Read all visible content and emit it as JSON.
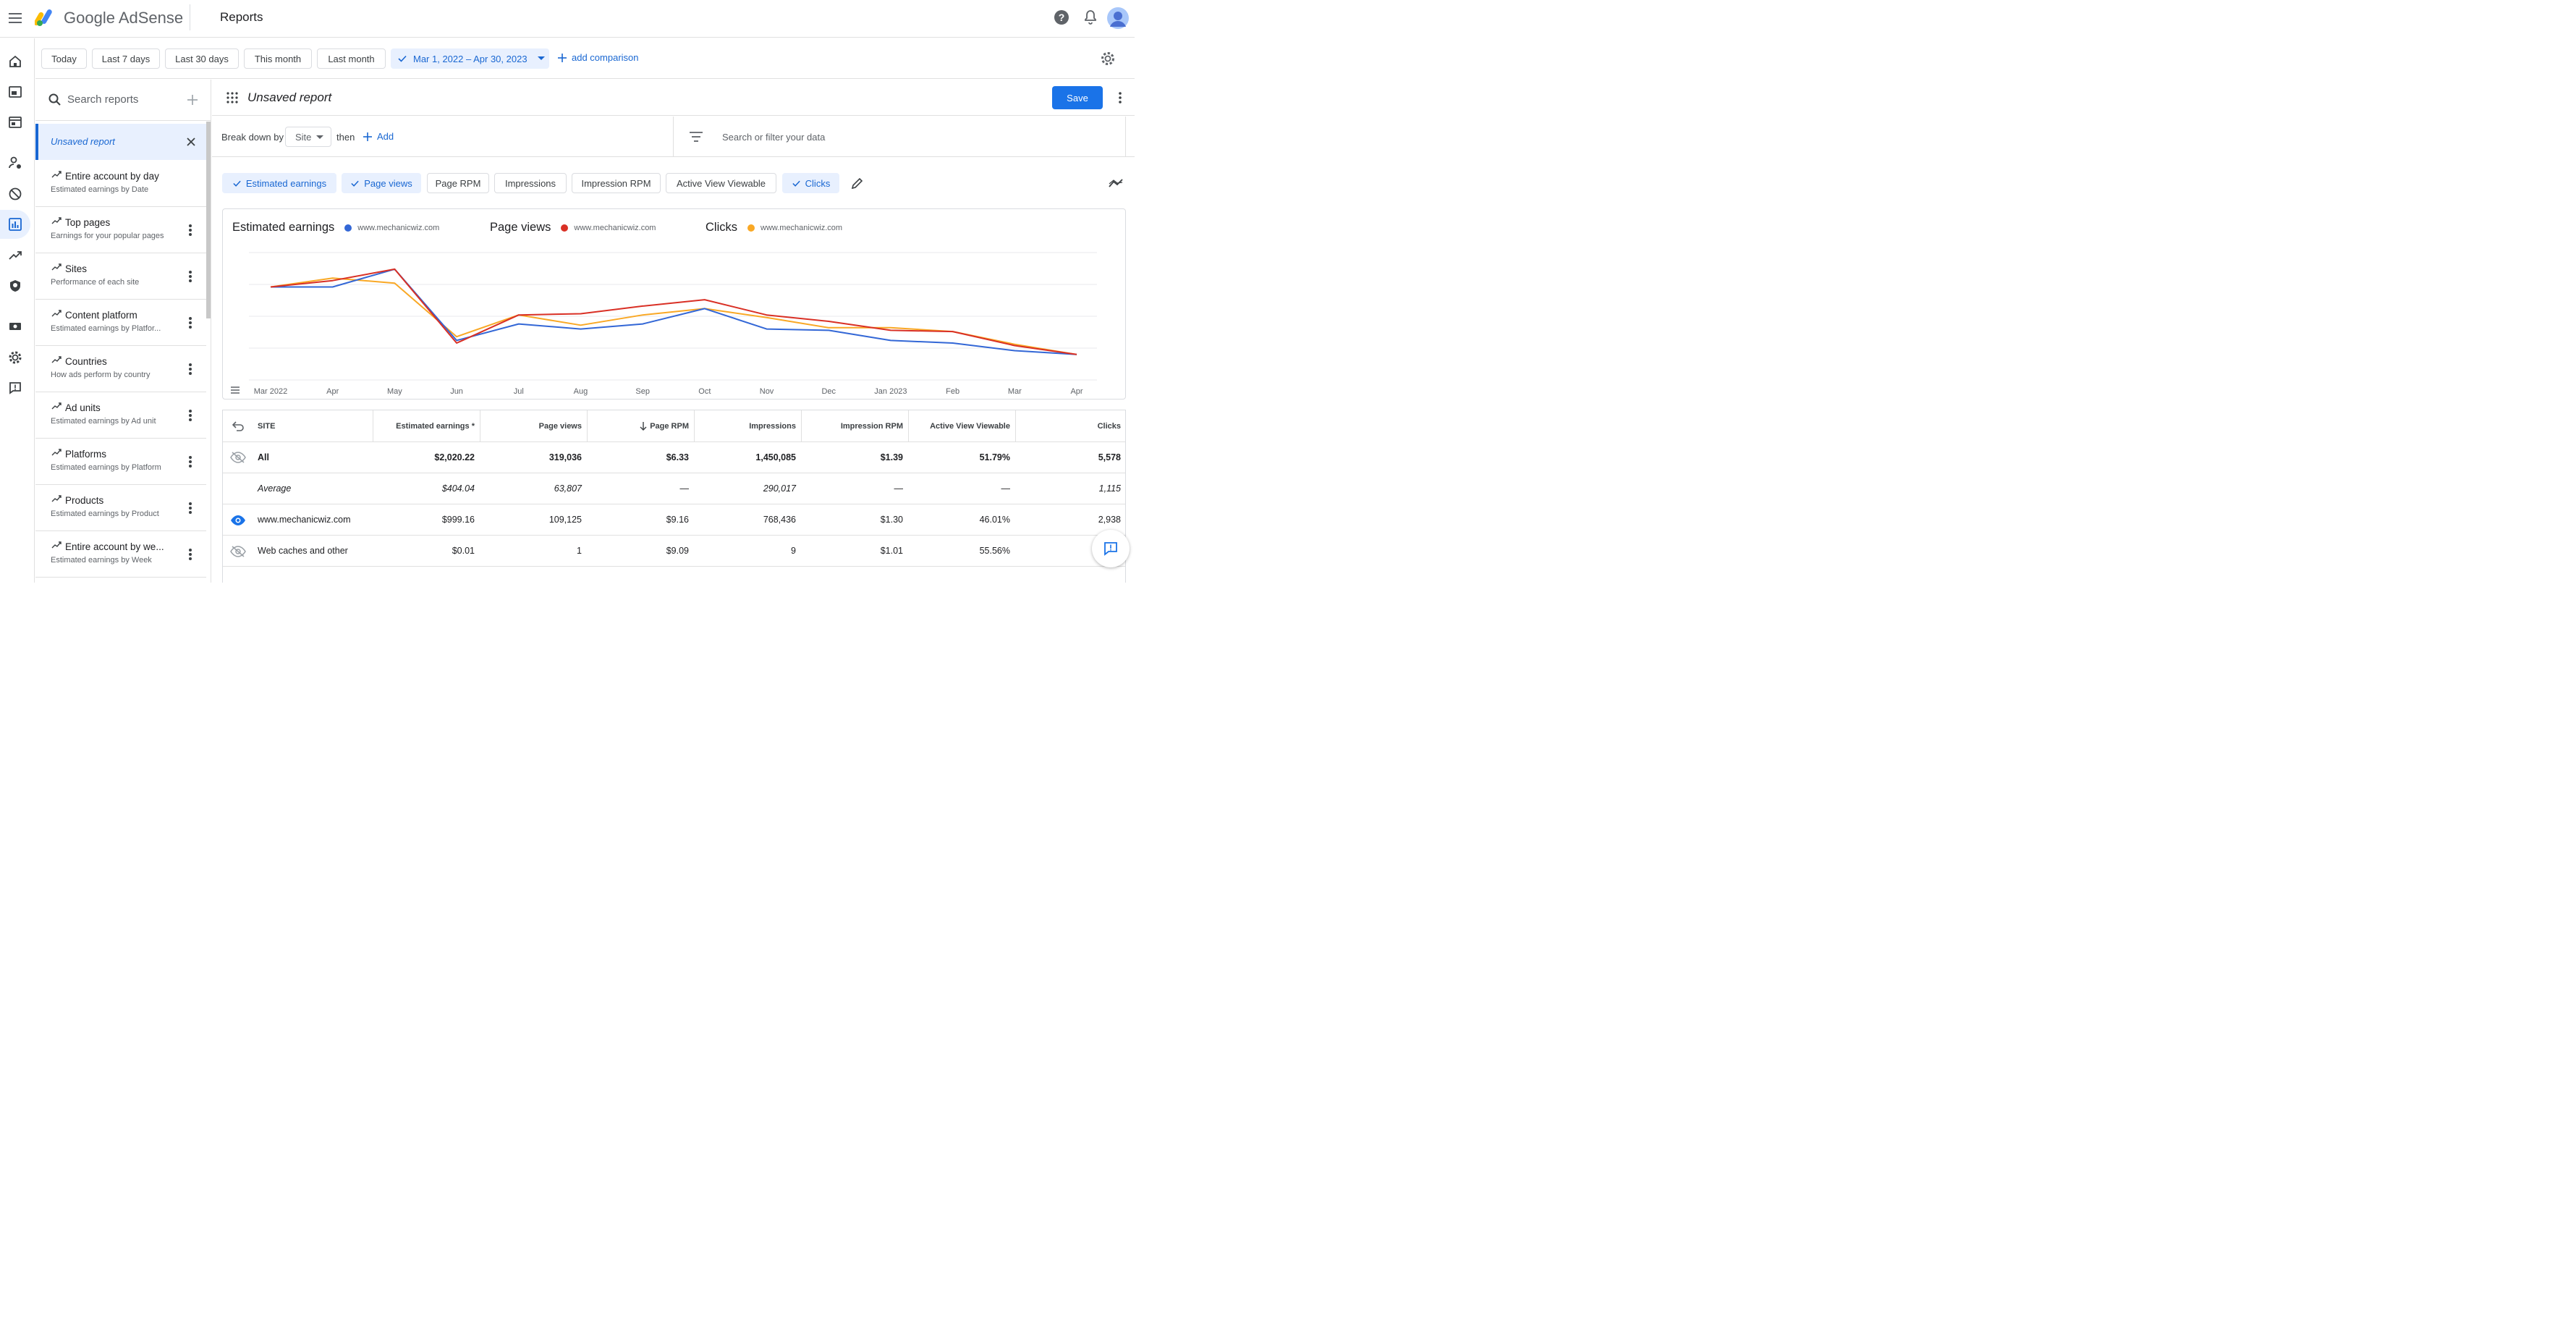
{
  "app": {
    "brand": "Google AdSense",
    "page_title": "Reports"
  },
  "date_presets": [
    "Today",
    "Last 7 days",
    "Last 30 days",
    "This month",
    "Last month"
  ],
  "date_range": "Mar 1, 2022 – Apr 30, 2023",
  "add_comparison": "add comparison",
  "sidebar": {
    "search_placeholder": "Search reports",
    "unsaved": "Unsaved report",
    "reports": [
      {
        "name": "Entire account by day",
        "desc": "Estimated earnings by Date"
      },
      {
        "name": "Top pages",
        "desc": "Earnings for your popular pages"
      },
      {
        "name": "Sites",
        "desc": "Performance of each site"
      },
      {
        "name": "Content platform",
        "desc": "Estimated earnings by Platfor..."
      },
      {
        "name": "Countries",
        "desc": "How ads perform by country"
      },
      {
        "name": "Ad units",
        "desc": "Estimated earnings by Ad unit"
      },
      {
        "name": "Platforms",
        "desc": "Estimated earnings by Platform"
      },
      {
        "name": "Products",
        "desc": "Estimated earnings by Product"
      },
      {
        "name": "Entire account by we...",
        "desc": "Estimated earnings by Week"
      }
    ]
  },
  "report": {
    "name": "Unsaved report",
    "save": "Save",
    "break_down_by": "Break down by",
    "dimension": "Site",
    "then": "then",
    "add": "Add",
    "filter_placeholder": "Search or filter your data"
  },
  "metrics": [
    {
      "label": "Estimated earnings",
      "on": true
    },
    {
      "label": "Page views",
      "on": true
    },
    {
      "label": "Page RPM",
      "on": false
    },
    {
      "label": "Impressions",
      "on": false
    },
    {
      "label": "Impression RPM",
      "on": false
    },
    {
      "label": "Active View Viewable",
      "on": false
    },
    {
      "label": "Clicks",
      "on": true
    }
  ],
  "chart_data": {
    "type": "line",
    "x": [
      "Mar 2022",
      "Apr",
      "May",
      "Jun",
      "Jul",
      "Aug",
      "Sep",
      "Oct",
      "Nov",
      "Dec",
      "Jan 2023",
      "Feb",
      "Mar",
      "Apr"
    ],
    "series": [
      {
        "title": "Estimated earnings",
        "name": "www.mechanicwiz.com",
        "color": "#3367d6",
        "values": [
          0.73,
          0.73,
          0.87,
          0.31,
          0.44,
          0.4,
          0.44,
          0.56,
          0.4,
          0.39,
          0.31,
          0.29,
          0.23,
          0.2
        ]
      },
      {
        "title": "Page views",
        "name": "www.mechanicwiz.com",
        "color": "#d93025",
        "values": [
          0.73,
          0.78,
          0.87,
          0.29,
          0.51,
          0.52,
          0.58,
          0.63,
          0.51,
          0.46,
          0.39,
          0.38,
          0.27,
          0.2
        ]
      },
      {
        "title": "Clicks",
        "name": "www.mechanicwiz.com",
        "color": "#f9a825",
        "values": [
          0.73,
          0.8,
          0.76,
          0.34,
          0.51,
          0.43,
          0.51,
          0.56,
          0.49,
          0.41,
          0.41,
          0.38,
          0.28,
          0.2
        ]
      }
    ]
  },
  "table": {
    "columns": [
      "SITE",
      "Estimated earnings *",
      "Page views",
      "Page RPM",
      "Impressions",
      "Impression RPM",
      "Active View Viewable",
      "Clicks"
    ],
    "rows": [
      {
        "type": "total",
        "cells": [
          "All",
          "$2,020.22",
          "319,036",
          "$6.33",
          "1,450,085",
          "$1.39",
          "51.79%",
          "5,578"
        ]
      },
      {
        "type": "average",
        "cells": [
          "Average",
          "$404.04",
          "63,807",
          "—",
          "290,017",
          "—",
          "—",
          "1,115"
        ]
      },
      {
        "type": "row",
        "cells": [
          "www.mechanicwiz.com",
          "$999.16",
          "109,125",
          "$9.16",
          "768,436",
          "$1.30",
          "46.01%",
          "2,938"
        ]
      },
      {
        "type": "row",
        "cells": [
          "Web caches and other",
          "$0.01",
          "1",
          "$9.09",
          "9",
          "$1.01",
          "55.56%",
          ""
        ]
      }
    ]
  }
}
